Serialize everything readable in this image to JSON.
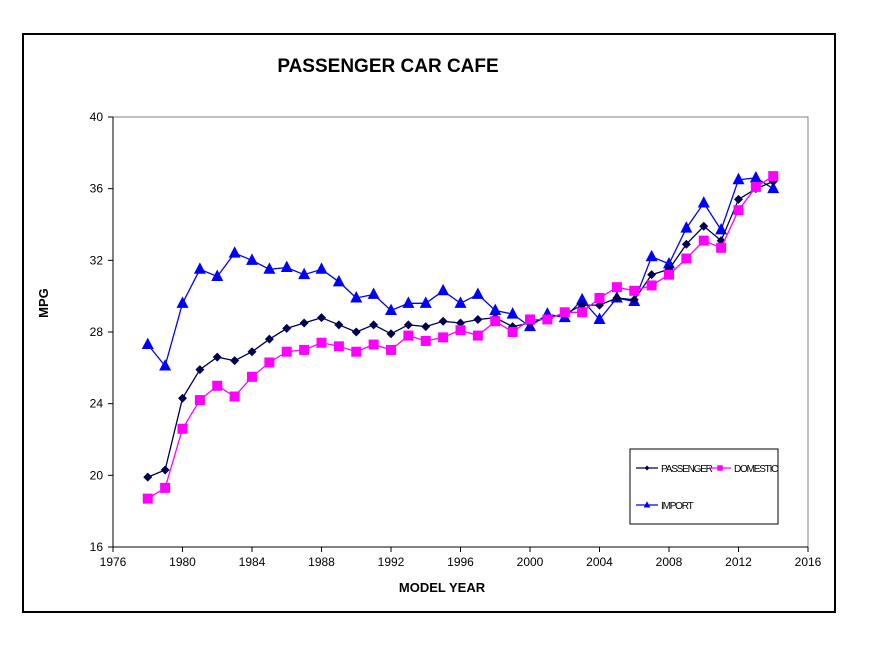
{
  "chart_data": {
    "type": "line",
    "title": "PASSENGER CAR CAFE",
    "xlabel": "MODEL YEAR",
    "ylabel": "MPG",
    "xlim": [
      1976,
      2016
    ],
    "ylim": [
      16,
      40
    ],
    "xticks": [
      1976,
      1980,
      1984,
      1988,
      1992,
      1996,
      2000,
      2004,
      2008,
      2012,
      2016
    ],
    "yticks": [
      16,
      20,
      24,
      28,
      32,
      36,
      40
    ],
    "grid": false,
    "legend_position": "bottom-right",
    "x": [
      1978,
      1979,
      1980,
      1981,
      1982,
      1983,
      1984,
      1985,
      1986,
      1987,
      1988,
      1989,
      1990,
      1991,
      1992,
      1993,
      1994,
      1995,
      1996,
      1997,
      1998,
      1999,
      2000,
      2001,
      2002,
      2003,
      2004,
      2005,
      2006,
      2007,
      2008,
      2009,
      2010,
      2011,
      2012,
      2013,
      2014
    ],
    "series": [
      {
        "name": "PASSENGER",
        "color": "#000050",
        "marker": "diamond",
        "values": [
          19.9,
          20.3,
          24.3,
          25.9,
          26.6,
          26.4,
          26.9,
          27.6,
          28.2,
          28.5,
          28.8,
          28.4,
          28.0,
          28.4,
          27.9,
          28.4,
          28.3,
          28.6,
          28.5,
          28.7,
          28.8,
          28.3,
          28.5,
          28.8,
          29.0,
          29.5,
          29.5,
          29.9,
          29.8,
          31.2,
          31.5,
          32.9,
          33.9,
          33.1,
          35.4,
          36.0,
          36.4
        ]
      },
      {
        "name": "DOMESTIC",
        "color": "#ff00ff",
        "marker": "square",
        "values": [
          18.7,
          19.3,
          22.6,
          24.2,
          25.0,
          24.4,
          25.5,
          26.3,
          26.9,
          27.0,
          27.4,
          27.2,
          26.9,
          27.3,
          27.0,
          27.8,
          27.5,
          27.7,
          28.1,
          27.8,
          28.6,
          28.0,
          28.7,
          28.7,
          29.1,
          29.1,
          29.9,
          30.5,
          30.3,
          30.6,
          31.2,
          32.1,
          33.1,
          32.7,
          34.8,
          36.1,
          36.7
        ]
      },
      {
        "name": "IMPORT",
        "color": "#0000ff",
        "marker": "triangle",
        "values": [
          27.3,
          26.1,
          29.6,
          31.5,
          31.1,
          32.4,
          32.0,
          31.5,
          31.6,
          31.2,
          31.5,
          30.8,
          29.9,
          30.1,
          29.2,
          29.6,
          29.6,
          30.3,
          29.6,
          30.1,
          29.2,
          29.0,
          28.3,
          29.0,
          28.8,
          29.8,
          28.7,
          29.9,
          29.7,
          32.2,
          31.8,
          33.8,
          35.2,
          33.7,
          36.5,
          36.6,
          36.0
        ]
      }
    ]
  }
}
